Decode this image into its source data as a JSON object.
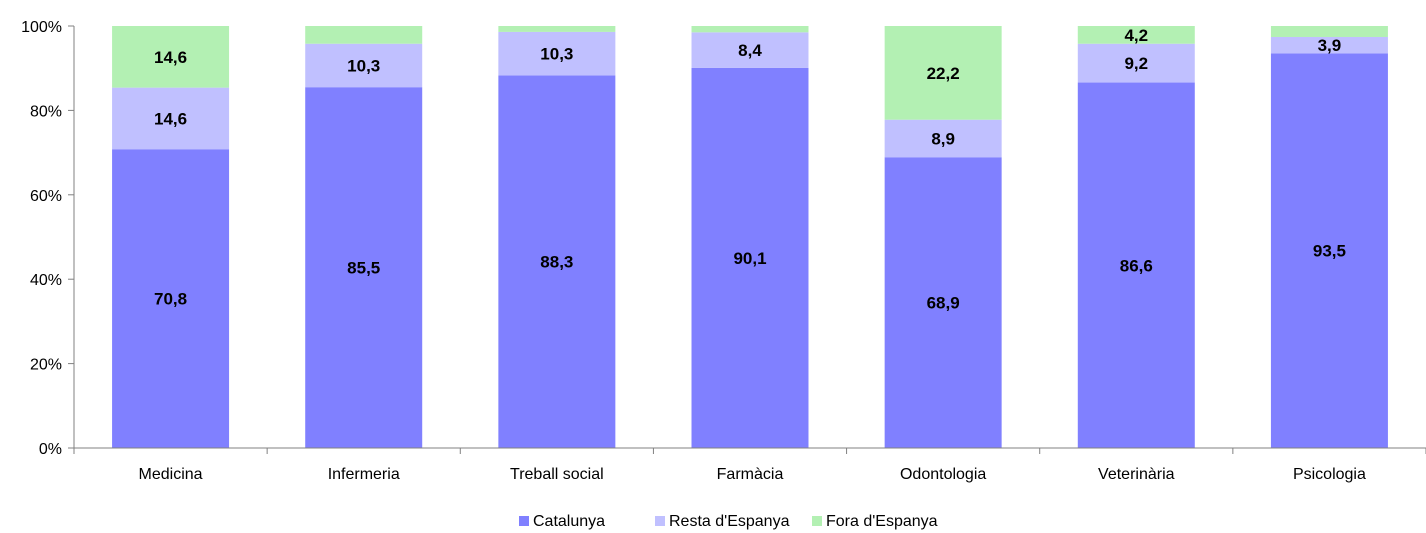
{
  "chart_data": {
    "type": "bar",
    "stacked": true,
    "categories": [
      "Medicina",
      "Infermeria",
      "Treball social",
      "Farmàcia",
      "Odontologia",
      "Veterinària",
      "Psicologia"
    ],
    "series": [
      {
        "name": "Catalunya",
        "color": "#8080ff",
        "values": [
          70.8,
          85.5,
          88.3,
          90.1,
          68.9,
          86.6,
          93.5
        ],
        "labels": [
          "70,8",
          "85,5",
          "88,3",
          "90,1",
          "68,9",
          "86,6",
          "93,5"
        ]
      },
      {
        "name": "Resta d'Espanya",
        "color": "#c0c0ff",
        "values": [
          14.6,
          10.3,
          10.3,
          8.4,
          8.9,
          9.2,
          3.9
        ],
        "labels": [
          "14,6",
          "10,3",
          "10,3",
          "8,4",
          "8,9",
          "9,2",
          "3,9"
        ]
      },
      {
        "name": "Fora d'Espanya",
        "color": "#b3f0b3",
        "values": [
          14.6,
          4.2,
          1.4,
          1.5,
          22.2,
          4.2,
          2.6
        ],
        "labels": [
          "14,6",
          "",
          "",
          "",
          "22,2",
          "4,2",
          ""
        ]
      }
    ],
    "yticks": [
      "0%",
      "20%",
      "40%",
      "60%",
      "80%",
      "100%"
    ],
    "ylim": [
      0,
      100
    ],
    "xlabel": "",
    "ylabel": "",
    "grid": false,
    "legend_position": "bottom"
  }
}
